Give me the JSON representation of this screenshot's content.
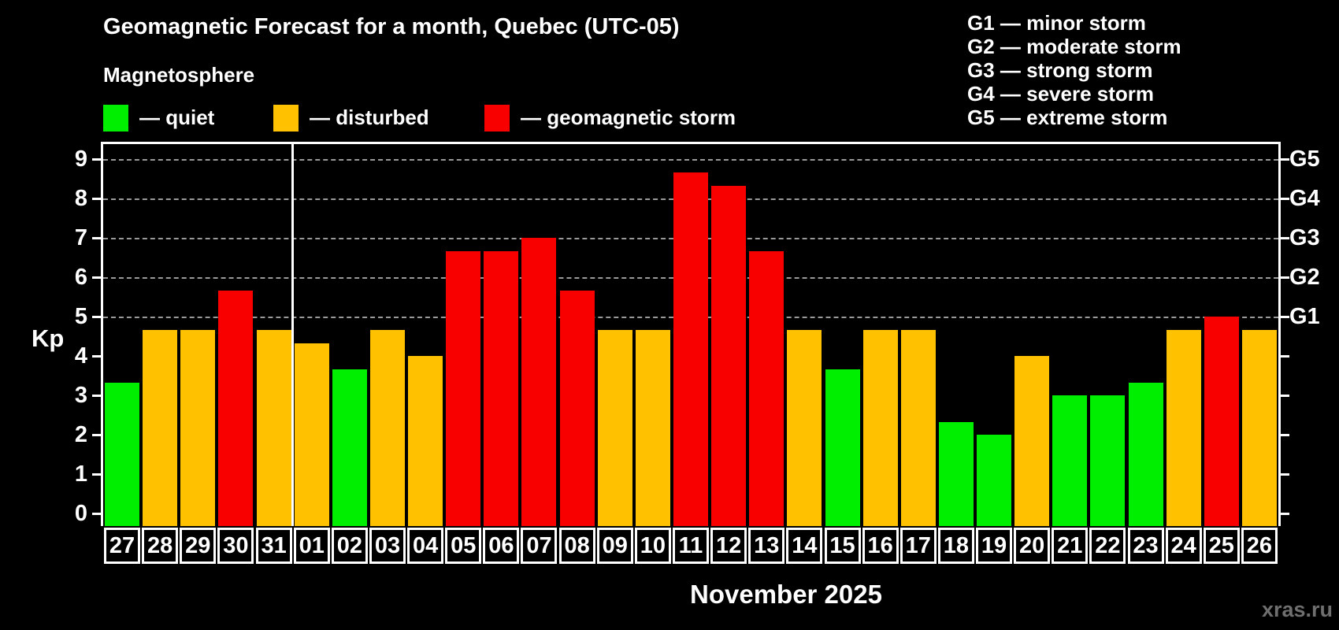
{
  "title": "Geomagnetic Forecast for a month, Quebec (UTC-05)",
  "subtitle": "Magnetosphere",
  "legend": {
    "items": [
      {
        "name": "quiet",
        "label": "— quiet",
        "color": "#00ee00",
        "x": 131
      },
      {
        "name": "disturbed",
        "label": "— disturbed",
        "color": "#ffc100",
        "x": 347
      },
      {
        "name": "storm",
        "label": "— geomagnetic storm",
        "color": "#f90000",
        "x": 615
      }
    ]
  },
  "g_legend": [
    "G1 — minor storm",
    "G2 — moderate storm",
    "G3 — strong storm",
    "G4 — severe storm",
    "G5 — extreme storm"
  ],
  "footer": {
    "month_label": "November 2025",
    "watermark": "xras.ru"
  },
  "chart_data": {
    "type": "bar",
    "title": "Geomagnetic Forecast for a month, Quebec (UTC-05)",
    "ylabel": "Kp",
    "ylim": [
      0,
      9.38
    ],
    "y_ticks": [
      0,
      1,
      2,
      3,
      4,
      5,
      6,
      7,
      8,
      9
    ],
    "gridlines_at": [
      5,
      6,
      7,
      8,
      9
    ],
    "grid_style": "dashed",
    "right_axis_labels": [
      {
        "label": "G1",
        "value": 5
      },
      {
        "label": "G2",
        "value": 6
      },
      {
        "label": "G3",
        "value": 7
      },
      {
        "label": "G4",
        "value": 8
      },
      {
        "label": "G5",
        "value": 9
      }
    ],
    "categories": [
      "27",
      "28",
      "29",
      "30",
      "31",
      "01",
      "02",
      "03",
      "04",
      "05",
      "06",
      "07",
      "08",
      "09",
      "10",
      "11",
      "12",
      "13",
      "14",
      "15",
      "16",
      "17",
      "18",
      "19",
      "20",
      "21",
      "22",
      "23",
      "24",
      "25",
      "26"
    ],
    "month_start_index": 5,
    "series": [
      {
        "name": "Kp forecast",
        "values": [
          3.33,
          4.67,
          4.67,
          5.67,
          4.67,
          4.33,
          3.67,
          4.67,
          4.0,
          6.67,
          6.67,
          7.0,
          5.67,
          4.67,
          4.67,
          8.67,
          8.33,
          6.67,
          4.67,
          3.67,
          4.67,
          4.67,
          2.33,
          2.0,
          4.0,
          3.0,
          3.0,
          3.33,
          4.67,
          5.0,
          4.67
        ],
        "statuses": [
          "quiet",
          "disturbed",
          "disturbed",
          "storm",
          "disturbed",
          "disturbed",
          "quiet",
          "disturbed",
          "disturbed",
          "storm",
          "storm",
          "storm",
          "storm",
          "disturbed",
          "disturbed",
          "storm",
          "storm",
          "storm",
          "disturbed",
          "quiet",
          "disturbed",
          "disturbed",
          "quiet",
          "quiet",
          "disturbed",
          "quiet",
          "quiet",
          "quiet",
          "disturbed",
          "storm",
          "disturbed"
        ]
      }
    ],
    "status_colors": {
      "quiet": "#00ee00",
      "disturbed": "#ffc100",
      "storm": "#f90000"
    },
    "legend_position": "top-left",
    "background": "#000000"
  }
}
